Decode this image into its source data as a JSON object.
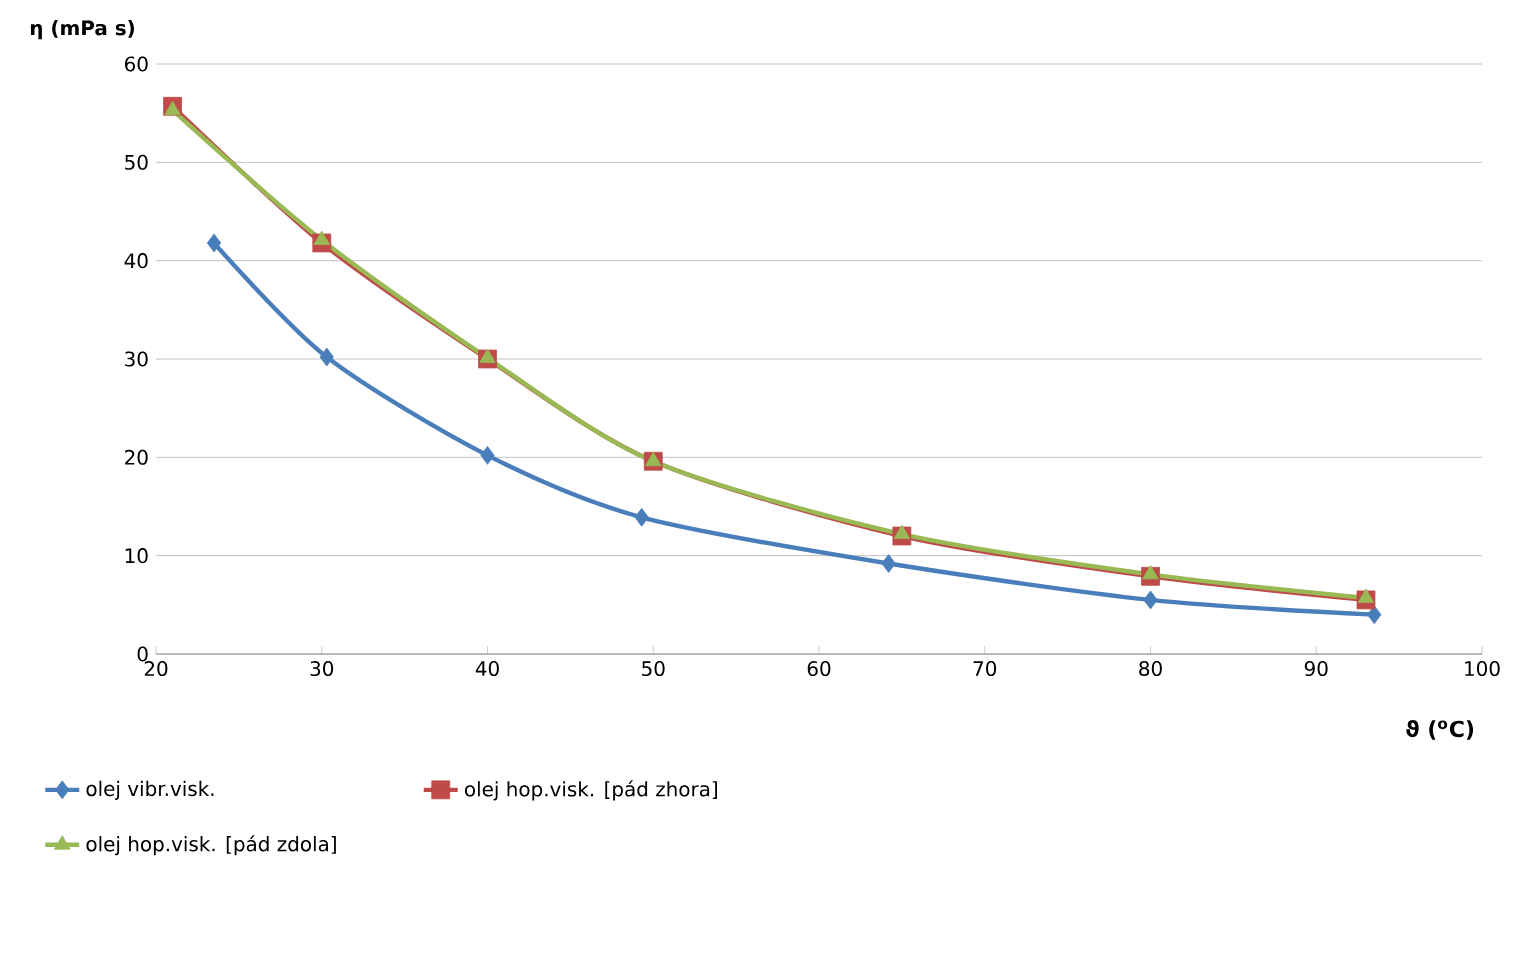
{
  "chart_data": {
    "type": "line",
    "xlabel": "ϑ ($^{o}$C)",
    "ylabel": "η (mPa s)",
    "xlim": [
      20,
      100
    ],
    "xticks": [
      20,
      30,
      40,
      50,
      60,
      70,
      80,
      90,
      100
    ],
    "ylim": [
      0,
      60
    ],
    "yticks": [
      0,
      10,
      20,
      30,
      40,
      50,
      60
    ],
    "grid": "y",
    "legend": "bottom",
    "line_style": "solid",
    "series": [
      {
        "name": "olej vibr.visk.",
        "color": "#4a7ebb",
        "marker": "diamond",
        "x": [
          23.5,
          30.3,
          40,
          49.3,
          64.2,
          80,
          93.5
        ],
        "values": [
          41.8,
          30.2,
          20.2,
          13.9,
          9.2,
          5.5,
          4.0
        ]
      },
      {
        "name": "olej hop.visk. [pád zhora]",
        "color": "#be4b48",
        "marker": "square",
        "x": [
          21,
          30,
          40,
          50,
          65,
          80,
          93
        ],
        "values": [
          55.7,
          41.8,
          30,
          19.6,
          12,
          7.9,
          5.5
        ]
      },
      {
        "name": "olej hop.visk. [pád zdola]",
        "color": "#98b954",
        "marker": "triangle",
        "x": [
          21,
          30,
          40,
          50,
          65,
          80,
          93
        ],
        "values": [
          55.3,
          42.1,
          30.1,
          19.6,
          12.2,
          8.1,
          5.7
        ]
      }
    ]
  }
}
